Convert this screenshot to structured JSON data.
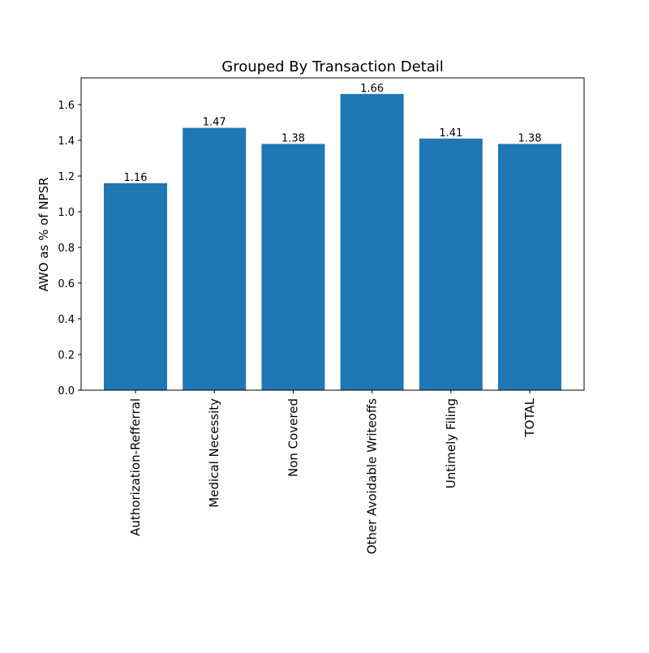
{
  "chart_data": {
    "type": "bar",
    "title": "Grouped By Transaction Detail",
    "xlabel": "",
    "ylabel": "AWO as % of NPSR",
    "categories": [
      "Authorization-Refferral",
      "Medical Necessity",
      "Non Covered",
      "Other Avoidable Writeoffs",
      "Untimely Filing",
      "TOTAL"
    ],
    "values": [
      1.16,
      1.47,
      1.38,
      1.66,
      1.41,
      1.38
    ],
    "data_labels": [
      "1.16",
      "1.47",
      "1.38",
      "1.66",
      "1.41",
      "1.38"
    ],
    "ylim": [
      0,
      1.75
    ],
    "yticks": [
      "0.0",
      "0.2",
      "0.4",
      "0.6",
      "0.8",
      "1.0",
      "1.2",
      "1.4",
      "1.6"
    ],
    "grid": false,
    "bar_color": "#1f77b4",
    "category_label_rotation": "vertical"
  }
}
